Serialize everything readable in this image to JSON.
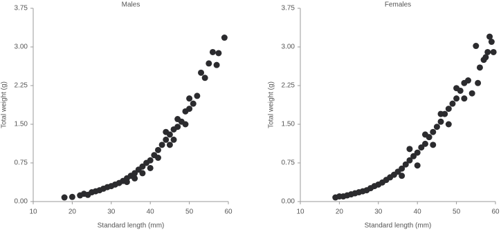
{
  "chart_data": [
    {
      "type": "scatter",
      "title": "Males",
      "x_label": "Standard length (mm)",
      "y_label": "Total weight (g)",
      "color": "#2b2b2e",
      "x": [
        18,
        20,
        22,
        23,
        24,
        25,
        26,
        27,
        28,
        29,
        30,
        31,
        32,
        33,
        34,
        35,
        36,
        37,
        38,
        39,
        40,
        41,
        42,
        43,
        44,
        45,
        46,
        47,
        48,
        49,
        50,
        51,
        52,
        53,
        54,
        55,
        56,
        57,
        57.5,
        59,
        40,
        42,
        44,
        45,
        38,
        46,
        47,
        36,
        34,
        50,
        49
      ],
      "values": [
        0.08,
        0.09,
        0.12,
        0.15,
        0.13,
        0.18,
        0.2,
        0.22,
        0.25,
        0.28,
        0.3,
        0.33,
        0.36,
        0.4,
        0.45,
        0.5,
        0.55,
        0.62,
        0.68,
        0.75,
        0.8,
        0.9,
        1.0,
        1.1,
        1.2,
        1.3,
        1.4,
        1.45,
        1.55,
        1.75,
        2.0,
        1.9,
        2.05,
        2.5,
        2.4,
        2.68,
        2.9,
        2.65,
        2.88,
        3.18,
        0.65,
        0.85,
        1.35,
        1.1,
        0.55,
        1.2,
        1.6,
        0.45,
        0.38,
        1.8,
        1.5
      ],
      "xlim": [
        10,
        60
      ],
      "ylim": [
        0,
        3.75
      ],
      "xticks": [
        10,
        20,
        30,
        40,
        50,
        60
      ],
      "yticks": [
        {
          "value": 0,
          "label": "0.00"
        },
        {
          "value": 0.75,
          "label": "0.75"
        },
        {
          "value": 1.5,
          "label": "1.50"
        },
        {
          "value": 2.25,
          "label": "2.25"
        },
        {
          "value": 3,
          "label": "3.00"
        },
        {
          "value": 3.75,
          "label": "3.75"
        }
      ]
    },
    {
      "type": "scatter",
      "title": "Females",
      "x_label": "Standard length (mm)",
      "y_label": "Total weight (g)",
      "color": "#2b2b2e",
      "x": [
        19,
        20,
        21,
        22,
        23,
        24,
        25,
        26,
        27,
        28,
        29,
        30,
        31,
        32,
        33,
        34,
        35,
        36,
        37,
        38,
        39,
        40,
        41,
        42,
        43,
        44,
        45,
        46,
        47,
        48,
        49,
        50,
        51,
        52,
        53,
        54,
        55,
        55.5,
        56,
        57,
        57.5,
        58,
        58.5,
        59,
        59.5,
        38,
        40,
        42,
        44,
        46,
        48,
        36,
        50,
        52
      ],
      "values": [
        0.08,
        0.1,
        0.1,
        0.12,
        0.14,
        0.16,
        0.18,
        0.2,
        0.22,
        0.26,
        0.3,
        0.33,
        0.37,
        0.42,
        0.47,
        0.52,
        0.58,
        0.64,
        0.72,
        0.8,
        0.88,
        0.95,
        1.05,
        1.12,
        1.25,
        1.35,
        1.45,
        1.55,
        1.7,
        1.8,
        1.9,
        2.0,
        2.15,
        2.3,
        2.35,
        2.1,
        3.02,
        2.3,
        2.6,
        2.75,
        2.8,
        2.9,
        3.2,
        3.1,
        2.9,
        1.02,
        0.7,
        1.3,
        1.1,
        1.7,
        1.5,
        0.5,
        2.2,
        2.0
      ],
      "xlim": [
        10,
        60
      ],
      "ylim": [
        0,
        3.75
      ],
      "xticks": [
        10,
        20,
        30,
        40,
        50,
        60
      ],
      "yticks": [
        {
          "value": 0,
          "label": "0.00"
        },
        {
          "value": 0.75,
          "label": "0.75"
        },
        {
          "value": 1.5,
          "label": "1.50"
        },
        {
          "value": 2.25,
          "label": "2.25"
        },
        {
          "value": 3,
          "label": "3.00"
        },
        {
          "value": 3.75,
          "label": "3.75"
        }
      ]
    }
  ]
}
